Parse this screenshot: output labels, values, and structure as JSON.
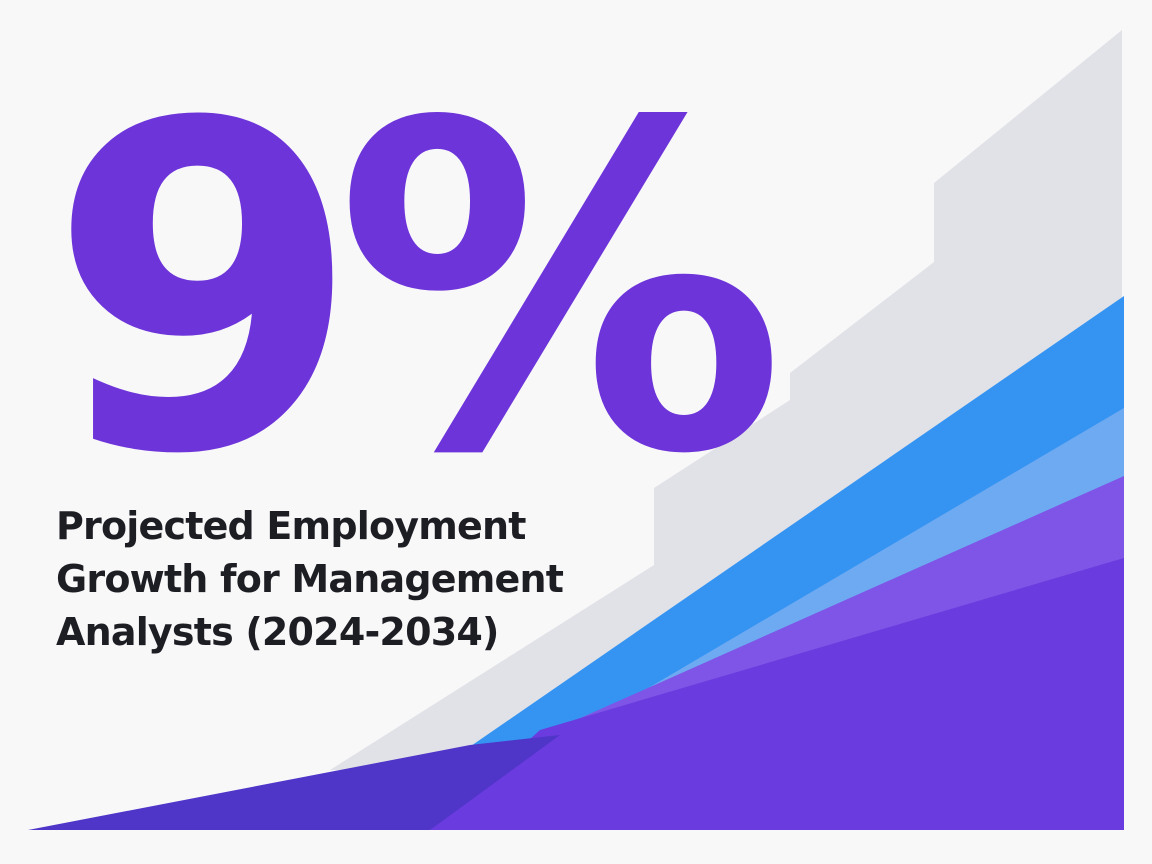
{
  "headline_stat": {
    "value": "9%"
  },
  "headline": {
    "lines": [
      "Projected Employment",
      "Growth for Management",
      "Analysts (2024-2034)"
    ]
  },
  "colors": {
    "background": "#f8f8f9",
    "stat": "#6d34d9",
    "text": "#1d1d24",
    "bars": "#e1e2e7",
    "wave_blue": "#3594f2",
    "wave_light_blue": "#6eaaf2",
    "wave_violet": "#7e55e6",
    "wave_purple": "#6a3bde",
    "wave_dark": "#4f35c8"
  },
  "decor": {
    "icon": "rising-growth-graphic"
  }
}
